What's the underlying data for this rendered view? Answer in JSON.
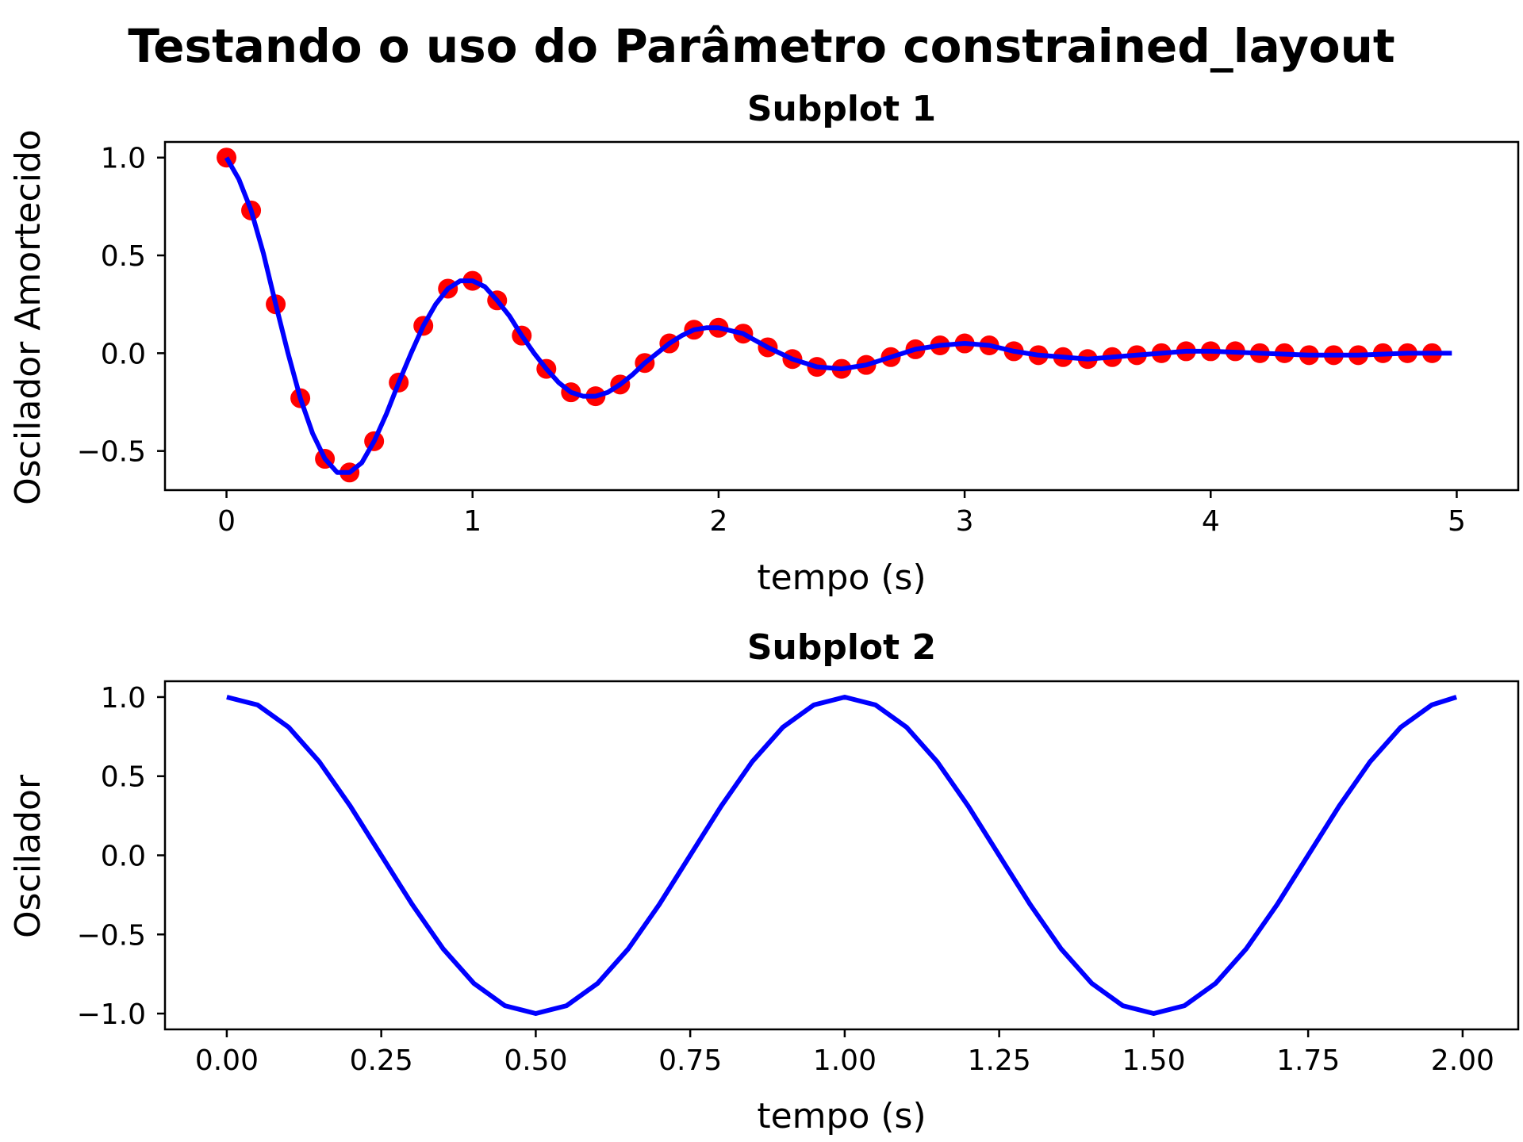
{
  "suptitle": "Testando o uso do Parâmetro constrained_layout",
  "colors": {
    "line": "#0000ff",
    "marker": "#ff0000"
  },
  "chart_data": [
    {
      "type": "line",
      "title": "Subplot 1",
      "xlabel": "tempo (s)",
      "ylabel": "Oscilador Amortecido",
      "xlim": [
        -0.25,
        5.25
      ],
      "ylim": [
        -0.7,
        1.08
      ],
      "xticks": [
        0,
        1,
        2,
        3,
        4,
        5
      ],
      "xtick_labels": [
        "0",
        "1",
        "2",
        "3",
        "4",
        "5"
      ],
      "yticks": [
        -0.5,
        0.0,
        0.5,
        1.0
      ],
      "ytick_labels": [
        "−0.5",
        "0.0",
        "0.5",
        "1.0"
      ],
      "grid": false,
      "series": [
        {
          "kind": "scatter",
          "color": "#ff0000",
          "x": [
            0.0,
            0.1,
            0.2,
            0.3,
            0.4,
            0.5,
            0.6,
            0.7,
            0.8,
            0.9,
            1.0,
            1.1,
            1.2,
            1.3,
            1.4,
            1.5,
            1.6,
            1.7,
            1.8,
            1.9,
            2.0,
            2.1,
            2.2,
            2.3,
            2.4,
            2.5,
            2.6,
            2.7,
            2.8,
            2.9,
            3.0,
            3.1,
            3.2,
            3.3,
            3.4,
            3.5,
            3.6,
            3.7,
            3.8,
            3.9,
            4.0,
            4.1,
            4.2,
            4.3,
            4.4,
            4.5,
            4.6,
            4.7,
            4.8,
            4.9
          ],
          "y": [
            1.0,
            0.73,
            0.25,
            -0.23,
            -0.54,
            -0.61,
            -0.45,
            -0.15,
            0.14,
            0.33,
            0.37,
            0.27,
            0.09,
            -0.08,
            -0.2,
            -0.22,
            -0.16,
            -0.05,
            0.05,
            0.12,
            0.13,
            0.1,
            0.03,
            -0.03,
            -0.07,
            -0.08,
            -0.06,
            -0.02,
            0.02,
            0.04,
            0.05,
            0.04,
            0.01,
            -0.01,
            -0.02,
            -0.03,
            -0.02,
            -0.01,
            0.0,
            0.01,
            0.01,
            0.01,
            0.0,
            0.0,
            -0.01,
            -0.01,
            -0.01,
            0.0,
            0.0,
            0.0
          ]
        },
        {
          "kind": "line",
          "color": "#0000ff",
          "x": [
            0.0,
            0.05,
            0.1,
            0.15,
            0.2,
            0.25,
            0.3,
            0.35,
            0.4,
            0.45,
            0.5,
            0.55,
            0.6,
            0.65,
            0.7,
            0.75,
            0.8,
            0.85,
            0.9,
            0.95,
            1.0,
            1.05,
            1.1,
            1.15,
            1.2,
            1.25,
            1.3,
            1.35,
            1.4,
            1.45,
            1.5,
            1.55,
            1.6,
            1.65,
            1.7,
            1.75,
            1.8,
            1.85,
            1.9,
            1.95,
            2.0,
            2.1,
            2.2,
            2.3,
            2.4,
            2.5,
            2.6,
            2.7,
            2.8,
            2.9,
            3.0,
            3.1,
            3.2,
            3.3,
            3.4,
            3.5,
            3.6,
            3.7,
            3.8,
            3.9,
            4.0,
            4.2,
            4.4,
            4.6,
            4.8,
            4.98
          ],
          "y": [
            1.0,
            0.89,
            0.73,
            0.51,
            0.25,
            0.0,
            -0.23,
            -0.41,
            -0.54,
            -0.61,
            -0.61,
            -0.56,
            -0.45,
            -0.31,
            -0.15,
            0.0,
            0.14,
            0.25,
            0.33,
            0.37,
            0.37,
            0.34,
            0.27,
            0.19,
            0.09,
            0.0,
            -0.08,
            -0.15,
            -0.2,
            -0.22,
            -0.22,
            -0.2,
            -0.16,
            -0.11,
            -0.05,
            0.0,
            0.05,
            0.09,
            0.12,
            0.13,
            0.13,
            0.1,
            0.03,
            -0.03,
            -0.07,
            -0.08,
            -0.06,
            -0.02,
            0.02,
            0.04,
            0.05,
            0.04,
            0.01,
            -0.01,
            -0.02,
            -0.03,
            -0.02,
            -0.01,
            0.0,
            0.01,
            0.01,
            0.0,
            -0.01,
            -0.01,
            0.0,
            0.0
          ]
        }
      ]
    },
    {
      "type": "line",
      "title": "Subplot 2",
      "xlabel": "tempo (s)",
      "ylabel": "Oscilador",
      "xlim": [
        -0.1,
        2.09
      ],
      "ylim": [
        -1.1,
        1.1
      ],
      "xticks": [
        0.0,
        0.25,
        0.5,
        0.75,
        1.0,
        1.25,
        1.5,
        1.75,
        2.0
      ],
      "xtick_labels": [
        "0.00",
        "0.25",
        "0.50",
        "0.75",
        "1.00",
        "1.25",
        "1.50",
        "1.75",
        "2.00"
      ],
      "yticks": [
        -1.0,
        -0.5,
        0.0,
        0.5,
        1.0
      ],
      "ytick_labels": [
        "−1.0",
        "−0.5",
        "0.0",
        "0.5",
        "1.0"
      ],
      "grid": false,
      "series": [
        {
          "kind": "line",
          "color": "#0000ff",
          "x": [
            0.0,
            0.05,
            0.1,
            0.15,
            0.2,
            0.25,
            0.3,
            0.35,
            0.4,
            0.45,
            0.5,
            0.55,
            0.6,
            0.65,
            0.7,
            0.75,
            0.8,
            0.85,
            0.9,
            0.95,
            1.0,
            1.05,
            1.1,
            1.15,
            1.2,
            1.25,
            1.3,
            1.35,
            1.4,
            1.45,
            1.5,
            1.55,
            1.6,
            1.65,
            1.7,
            1.75,
            1.8,
            1.85,
            1.9,
            1.95,
            1.99
          ],
          "y": [
            1.0,
            0.95,
            0.81,
            0.59,
            0.31,
            0.0,
            -0.31,
            -0.59,
            -0.81,
            -0.95,
            -1.0,
            -0.95,
            -0.81,
            -0.59,
            -0.31,
            0.0,
            0.31,
            0.59,
            0.81,
            0.95,
            1.0,
            0.95,
            0.81,
            0.59,
            0.31,
            0.0,
            -0.31,
            -0.59,
            -0.81,
            -0.95,
            -1.0,
            -0.95,
            -0.81,
            -0.59,
            -0.31,
            0.0,
            0.31,
            0.59,
            0.81,
            0.95,
            1.0
          ]
        }
      ]
    }
  ]
}
